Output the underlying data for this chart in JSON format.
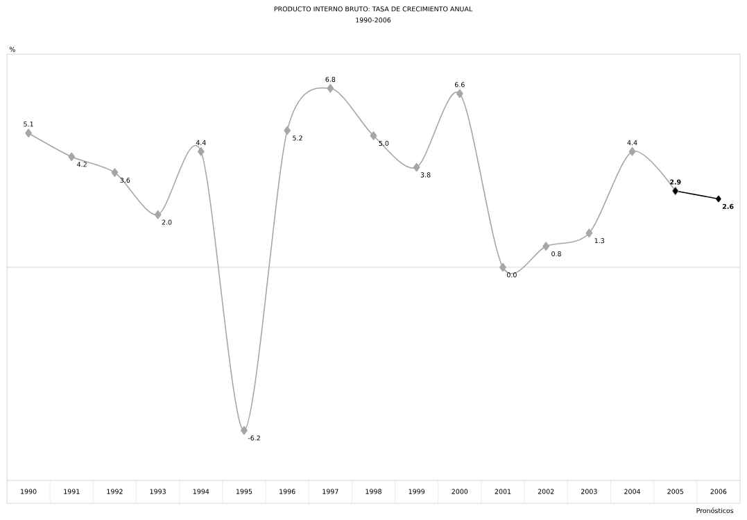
{
  "chart_data": {
    "type": "line",
    "title": "PRODUCTO INTERNO BRUTO: TASA DE CRECIMIENTO ANUAL",
    "subtitle": "1990-2006",
    "ylabel": "%",
    "categories": [
      "1990",
      "1991",
      "1992",
      "1993",
      "1994",
      "1995",
      "1996",
      "1997",
      "1998",
      "1999",
      "2000",
      "2001",
      "2002",
      "2003",
      "2004",
      "2005",
      "2006"
    ],
    "ylim": [
      -8.1,
      8.1
    ],
    "marker": "diamond",
    "series": [
      {
        "color": "#a6a6a6",
        "values": [
          5.1,
          4.2,
          3.6,
          2.0,
          4.4,
          -6.2,
          5.2,
          6.8,
          5.0,
          3.8,
          6.6,
          0.0,
          0.8,
          1.3,
          4.4,
          2.9,
          null
        ],
        "value_labels": [
          "5.1",
          "4.2",
          "3.6",
          "2.0",
          "4.4",
          "-6.2",
          "5.2",
          "6.8",
          "5.0",
          "3.8",
          "6.6",
          "0.0",
          "0.8",
          "1.3",
          "4.4",
          null,
          null
        ]
      },
      {
        "color": "#000000",
        "values": [
          null,
          null,
          null,
          null,
          null,
          null,
          null,
          null,
          null,
          null,
          null,
          null,
          null,
          null,
          null,
          2.9,
          2.6
        ],
        "value_labels": [
          null,
          null,
          null,
          null,
          null,
          null,
          null,
          null,
          null,
          null,
          null,
          null,
          null,
          null,
          null,
          "2.9",
          "2.6"
        ]
      }
    ],
    "annotations": [
      "Pronósticos"
    ]
  }
}
